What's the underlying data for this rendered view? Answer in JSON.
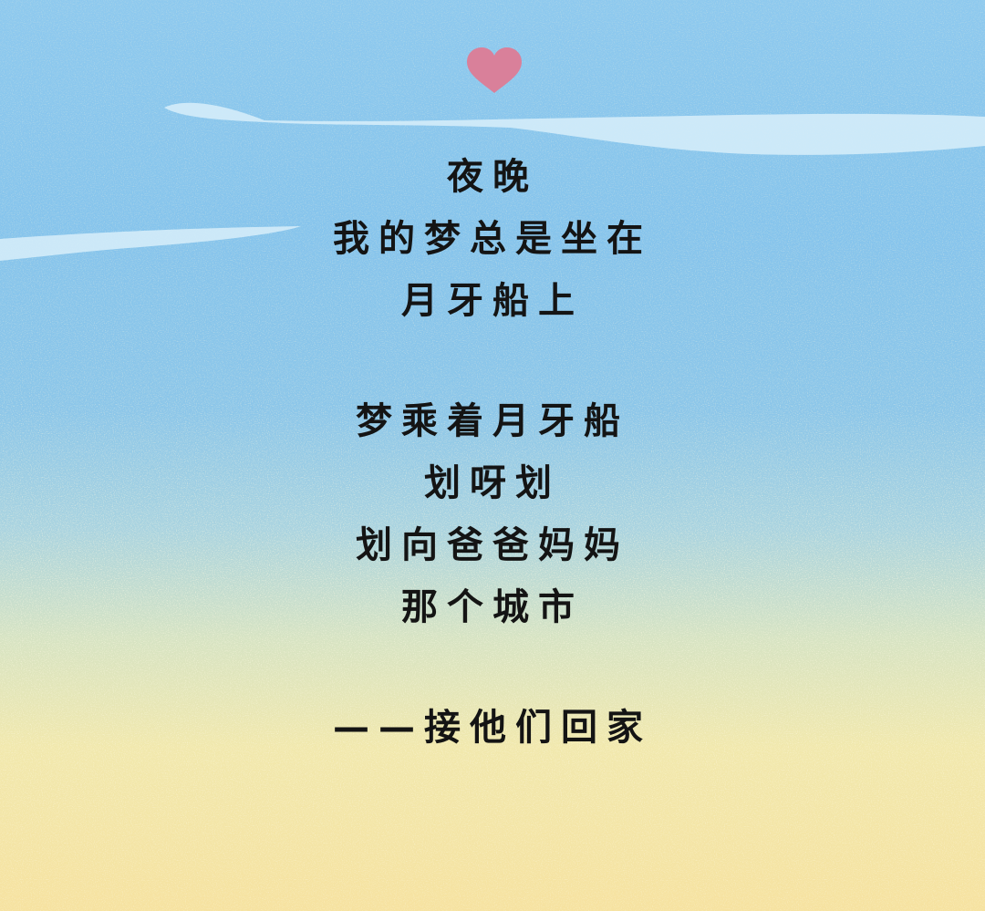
{
  "poem": {
    "stanza1": [
      "夜晚",
      "我的梦总是坐在",
      "月牙船上"
    ],
    "stanza2": [
      "梦乘着月牙船",
      "划呀划",
      "划向爸爸妈妈",
      "那个城市"
    ],
    "signature": "——接他们回家"
  },
  "decorations": {
    "heart_color": "#d9809a",
    "cloud_color": "#d4ecfa",
    "sky_color": "#8ec9ee",
    "sand_color": "#f6e2a0",
    "text_color": "#141414"
  }
}
